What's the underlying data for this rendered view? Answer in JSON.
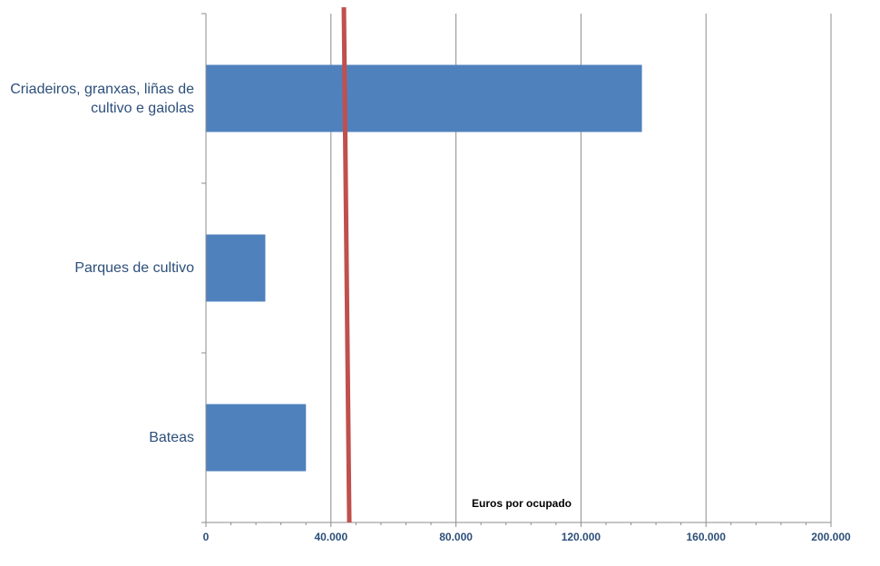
{
  "chart_data": {
    "type": "bar",
    "orientation": "horizontal",
    "categories": [
      "Criadeiros, granxas, liñas de cultivo e gaiolas",
      "Parques de cultivo",
      "Bateas"
    ],
    "values": [
      139500,
      19000,
      32000
    ],
    "xlim": [
      0,
      200000
    ],
    "x_ticks": [
      0,
      40000,
      80000,
      120000,
      160000,
      200000
    ],
    "x_tick_labels": [
      "0",
      "40.000",
      "80.000",
      "120.000",
      "160.000",
      "200.000"
    ],
    "xlabel": "Euros por ocupado",
    "reference_line": {
      "value": 45000
    },
    "grid": true,
    "colors": {
      "bar": "#4f81bd",
      "reference_line": "#c0504d",
      "grid": "#8c8c8c",
      "labels": "#2d4f7a"
    }
  }
}
